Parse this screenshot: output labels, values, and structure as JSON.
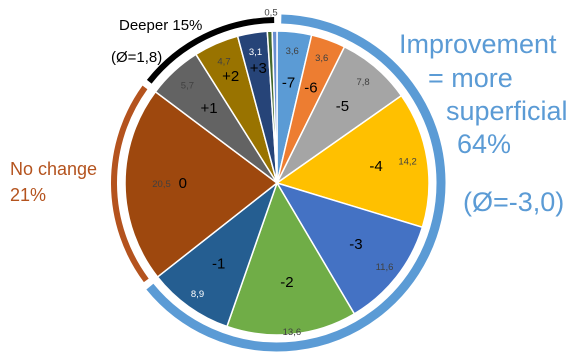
{
  "chart_data": {
    "type": "pie",
    "slices": [
      {
        "label": "-7",
        "value": 3.6,
        "value_text": "3,6",
        "color": "#5b9bd5"
      },
      {
        "label": "-6",
        "value": 3.6,
        "value_text": "3,6",
        "color": "#ed7d31"
      },
      {
        "label": "-5",
        "value": 7.8,
        "value_text": "7,8",
        "color": "#a5a5a5"
      },
      {
        "label": "-4",
        "value": 14.2,
        "value_text": "14,2",
        "color": "#ffc000"
      },
      {
        "label": "-3",
        "value": 11.6,
        "value_text": "11,6",
        "color": "#4472c4"
      },
      {
        "label": "-2",
        "value": 13.6,
        "value_text": "13,6",
        "color": "#70ad47"
      },
      {
        "label": "-1",
        "value": 8.9,
        "value_text": "8,9",
        "color": "#255e91"
      },
      {
        "label": "0",
        "value": 20.5,
        "value_text": "20,5",
        "color": "#9e480e"
      },
      {
        "label": "+1",
        "value": 5.7,
        "value_text": "5,7",
        "color": "#636363"
      },
      {
        "label": "+2",
        "value": 4.7,
        "value_text": "4,7",
        "color": "#997300"
      },
      {
        "label": "+3",
        "value": 3.1,
        "value_text": "3,1",
        "color": "#264478"
      },
      {
        "label": "",
        "value": 0.5,
        "value_text": "0,5",
        "color": "#43682b"
      },
      {
        "label": "",
        "value": 0.5,
        "value_text": "0,5",
        "color": "#698ed0"
      }
    ],
    "groups": [
      {
        "name": "improvement",
        "line1": "Improvement",
        "line2": "= more",
        "line3": "superficial",
        "line4": "64%",
        "line5": "(Ø=-3,0)",
        "color": "#5b9bd5"
      },
      {
        "name": "no-change",
        "line1": "No change",
        "line2": "21%",
        "color": "#b4531e"
      },
      {
        "name": "deeper",
        "line1": "Deeper 15%",
        "line2": "(Ø=1,8)",
        "color": "#000000"
      }
    ]
  }
}
